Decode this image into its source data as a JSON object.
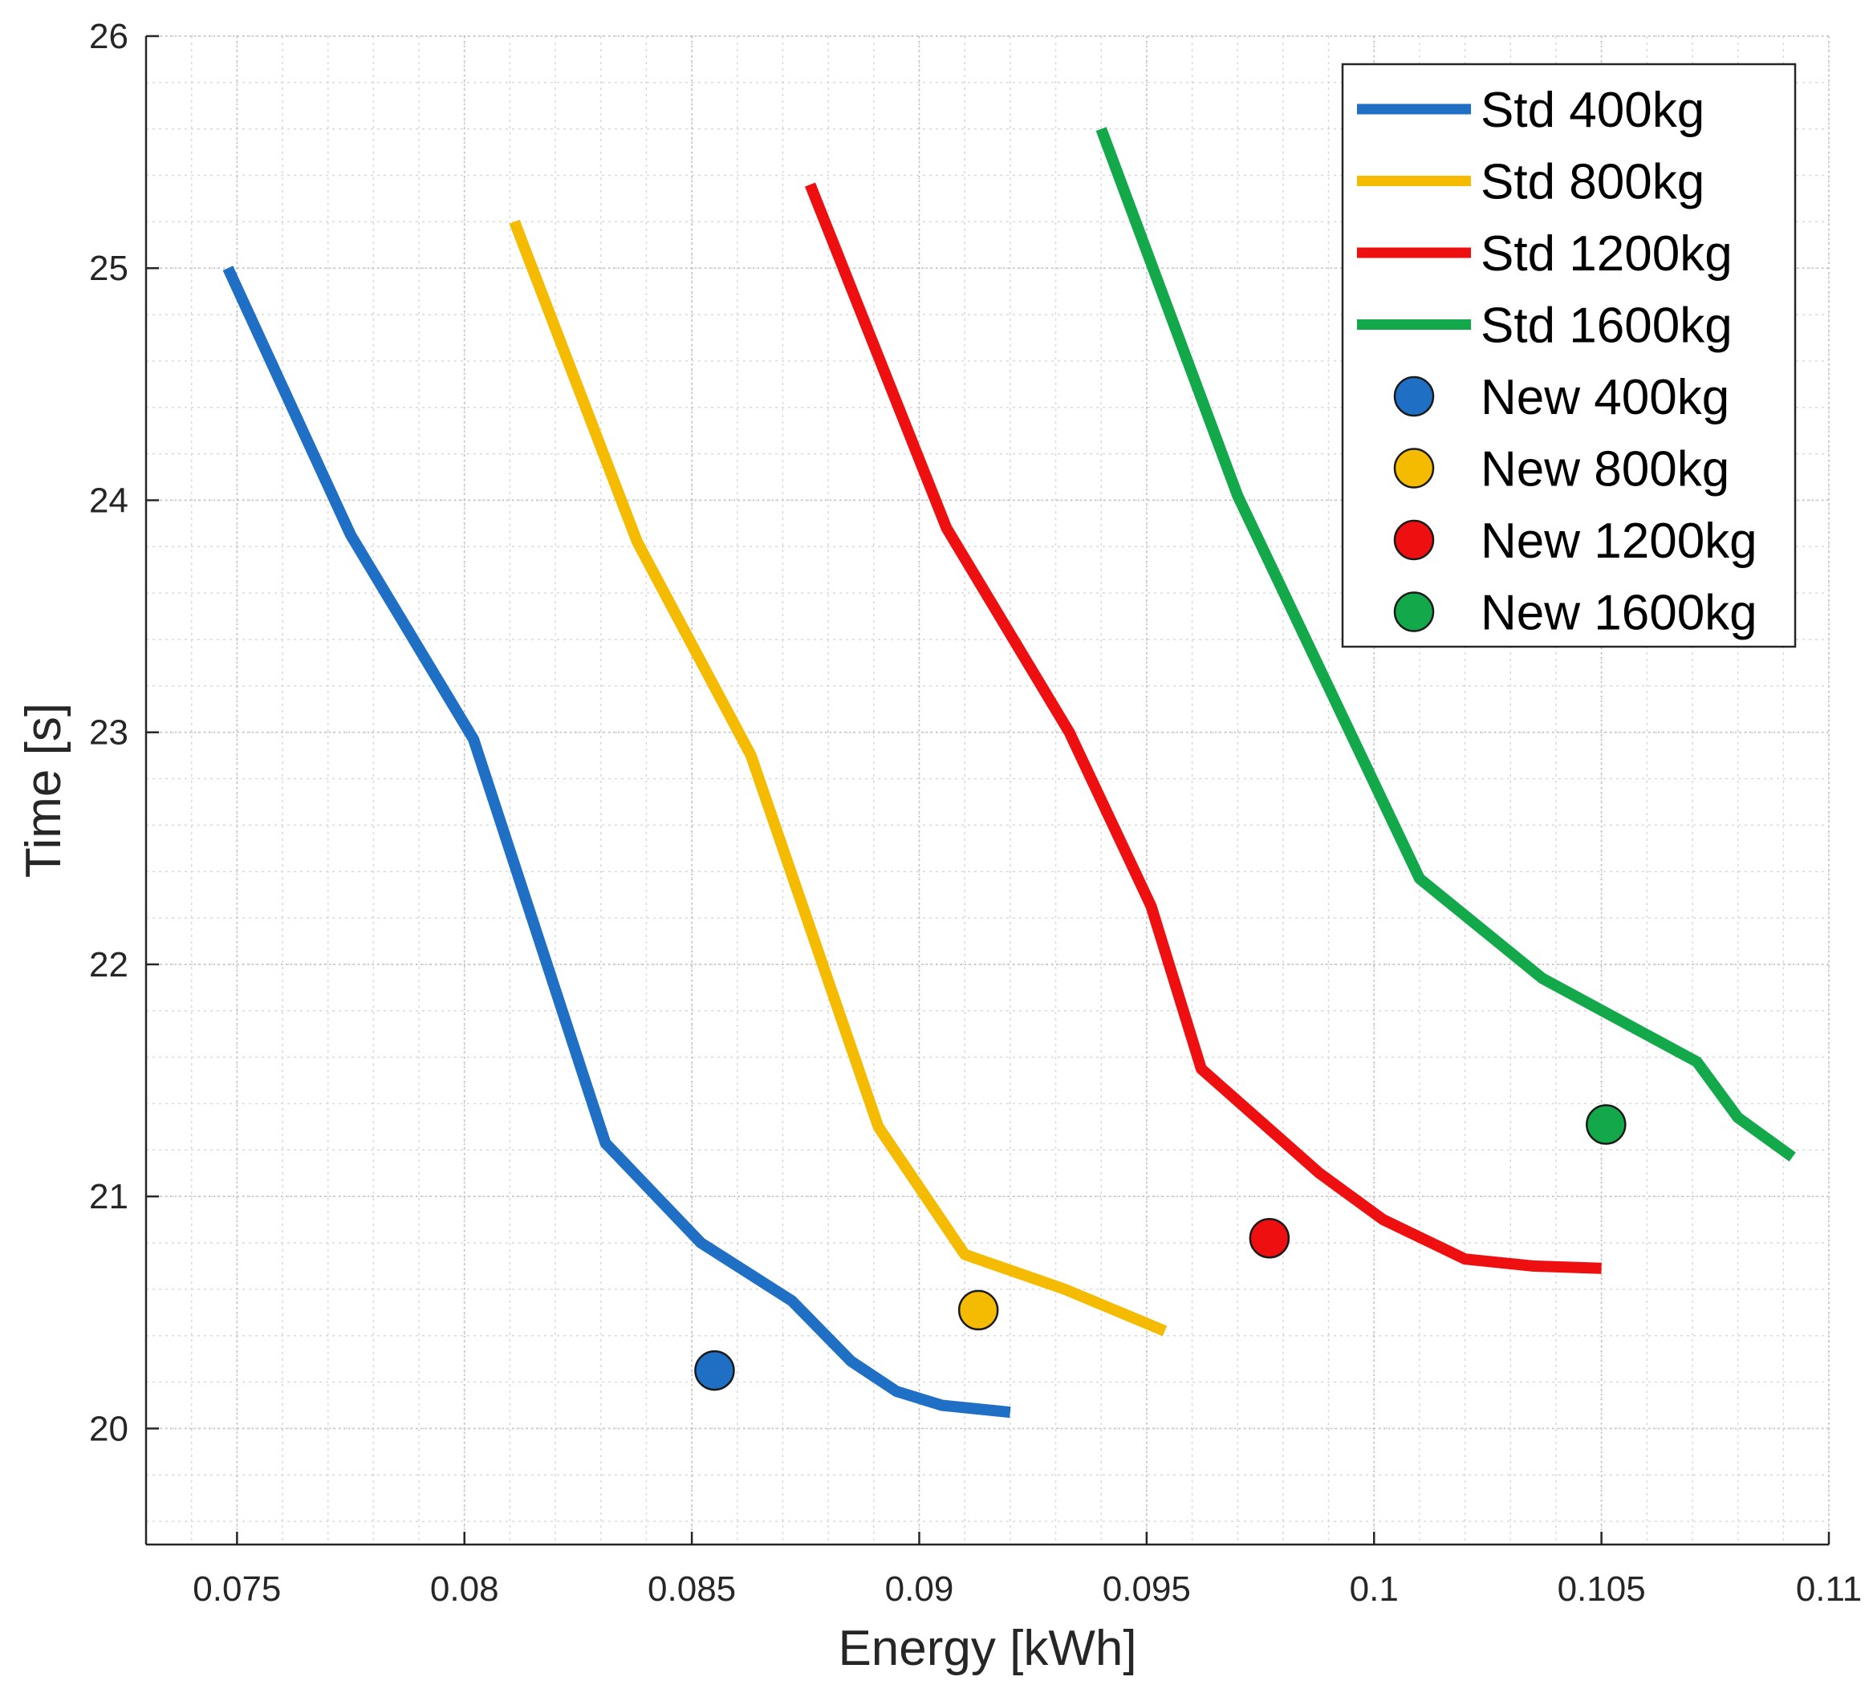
{
  "chart_data": {
    "type": "line",
    "title": "",
    "xlabel": "Energy [kWh]",
    "ylabel": "Time [s]",
    "xlim": [
      0.073,
      0.11
    ],
    "ylim": [
      19.5,
      26
    ],
    "x_ticks": [
      0.075,
      0.08,
      0.085,
      0.09,
      0.095,
      0.1,
      0.105,
      0.11
    ],
    "x_tick_labels": [
      "0.075",
      "0.08",
      "0.085",
      "0.09",
      "0.095",
      "0.1",
      "0.105",
      "0.11"
    ],
    "y_ticks": [
      20,
      21,
      22,
      23,
      24,
      25,
      26
    ],
    "y_tick_labels": [
      "20",
      "21",
      "22",
      "23",
      "24",
      "25",
      "26"
    ],
    "grid": true,
    "minor_grid": true,
    "legend_position": "top-right",
    "series": [
      {
        "name": "Std 400kg",
        "kind": "line",
        "color": "#1f6fc5",
        "x": [
          0.0748,
          0.0775,
          0.0802,
          0.0831,
          0.0852,
          0.0872,
          0.0885,
          0.0895,
          0.0905,
          0.092
        ],
        "y": [
          25.0,
          23.85,
          22.97,
          21.23,
          20.8,
          20.55,
          20.29,
          20.16,
          20.1,
          20.07
        ]
      },
      {
        "name": "Std 800kg",
        "kind": "line",
        "color": "#f5bb00",
        "x": [
          0.0811,
          0.0838,
          0.0863,
          0.0891,
          0.091,
          0.0932,
          0.0954
        ],
        "y": [
          25.2,
          23.82,
          22.9,
          21.3,
          20.75,
          20.6,
          20.42
        ]
      },
      {
        "name": "Std 1200kg",
        "kind": "line",
        "color": "#ee1010",
        "x": [
          0.0876,
          0.0906,
          0.0933,
          0.0951,
          0.0962,
          0.0988,
          0.1002,
          0.102,
          0.1035,
          0.105
        ],
        "y": [
          25.36,
          23.88,
          23.0,
          22.25,
          21.55,
          21.1,
          20.9,
          20.73,
          20.7,
          20.69
        ]
      },
      {
        "name": "Std 1600kg",
        "kind": "line",
        "color": "#13a84a",
        "x": [
          0.094,
          0.097,
          0.101,
          0.1037,
          0.1071,
          0.108,
          0.1092
        ],
        "y": [
          25.6,
          24.02,
          22.37,
          21.94,
          21.58,
          21.34,
          21.17
        ]
      },
      {
        "name": "New 400kg",
        "kind": "marker",
        "color": "#1f6fc5",
        "x": [
          0.0855
        ],
        "y": [
          20.25
        ]
      },
      {
        "name": "New 800kg",
        "kind": "marker",
        "color": "#f5bb00",
        "x": [
          0.0913
        ],
        "y": [
          20.51
        ]
      },
      {
        "name": "New 1200kg",
        "kind": "marker",
        "color": "#ee1010",
        "x": [
          0.0977
        ],
        "y": [
          20.82
        ]
      },
      {
        "name": "New 1600kg",
        "kind": "marker",
        "color": "#13a84a",
        "x": [
          0.1051
        ],
        "y": [
          21.31
        ]
      }
    ]
  }
}
